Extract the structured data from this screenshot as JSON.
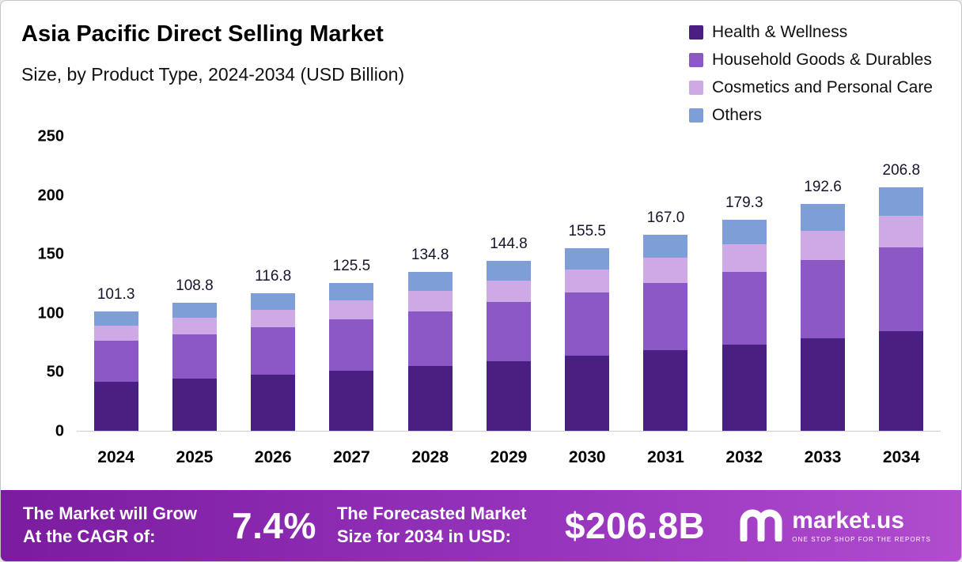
{
  "header": {
    "title": "Asia Pacific Direct Selling Market",
    "subtitle": "Size, by Product Type, 2024-2034 (USD Billion)"
  },
  "legend": [
    {
      "label": "Health & Wellness",
      "color": "#4a1f82"
    },
    {
      "label": "Household Goods & Durables",
      "color": "#8c58c6"
    },
    {
      "label": "Cosmetics and Personal Care",
      "color": "#cda9e6"
    },
    {
      "label": "Others",
      "color": "#7e9ed8"
    }
  ],
  "chart_data": {
    "type": "bar",
    "stacked": true,
    "title": "Asia Pacific Direct Selling Market Size, by Product Type, 2024-2034 (USD Billion)",
    "categories": [
      "2024",
      "2025",
      "2026",
      "2027",
      "2028",
      "2029",
      "2030",
      "2031",
      "2032",
      "2033",
      "2034"
    ],
    "series": [
      {
        "name": "Health & Wellness",
        "color": "#4a1f82",
        "values": [
          41.5,
          44.5,
          47.8,
          51.4,
          55.2,
          59.3,
          63.7,
          68.4,
          73.4,
          78.9,
          84.7
        ]
      },
      {
        "name": "Household Goods & Durables",
        "color": "#8c58c6",
        "values": [
          35.0,
          37.6,
          40.3,
          43.3,
          46.5,
          50.0,
          53.7,
          57.6,
          61.9,
          66.5,
          71.4
        ]
      },
      {
        "name": "Cosmetics and Personal Care",
        "color": "#cda9e6",
        "values": [
          13.0,
          14.0,
          15.0,
          16.1,
          17.3,
          18.6,
          20.0,
          21.4,
          23.0,
          24.7,
          26.5
        ]
      },
      {
        "name": "Others",
        "color": "#7e9ed8",
        "values": [
          11.8,
          12.7,
          13.7,
          14.7,
          15.8,
          16.9,
          18.1,
          19.6,
          21.0,
          22.5,
          24.2
        ]
      }
    ],
    "totals": [
      101.3,
      108.8,
      116.8,
      125.5,
      134.8,
      144.8,
      155.5,
      167.0,
      179.3,
      192.6,
      206.8
    ],
    "xlabel": "",
    "ylabel": "",
    "ylim": [
      0,
      250
    ],
    "yticks": [
      0,
      50,
      100,
      150,
      200,
      250
    ],
    "grid": false,
    "legend_position": "top-right"
  },
  "footer": {
    "cagr_label_line1": "The Market will Grow",
    "cagr_label_line2": "At the CAGR of:",
    "cagr_value": "7.4%",
    "forecast_label_line1": "The Forecasted Market",
    "forecast_label_line2": "Size for 2034 in USD:",
    "forecast_value": "$206.8B",
    "brand": "market.us",
    "brand_tagline": "ONE STOP SHOP FOR THE REPORTS"
  }
}
